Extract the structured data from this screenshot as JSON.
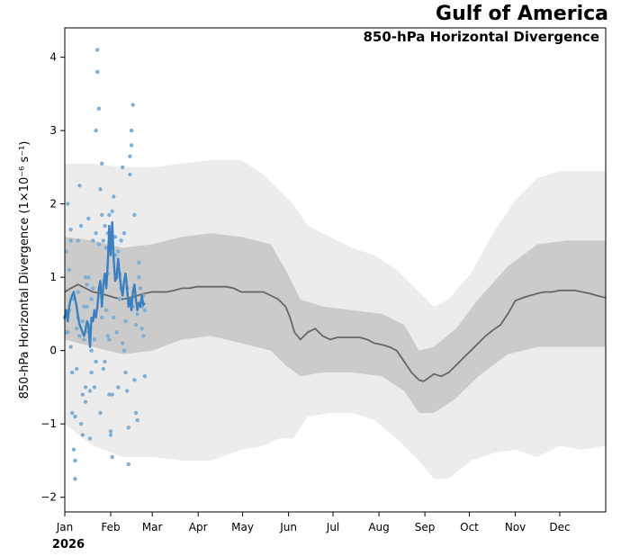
{
  "chart_data": {
    "type": "line",
    "title": "Gulf of America",
    "subtitle": "850-hPa Horizontal Divergence",
    "ylabel": "850-hPa Horizontal Divergence (1×10⁻⁶ s⁻¹)",
    "xlabel": "",
    "year_label": "2026",
    "ylim": [
      -2.2,
      4.4
    ],
    "xlim_day": [
      1,
      366
    ],
    "y_ticks": [
      -2,
      -1,
      0,
      1,
      2,
      3,
      4
    ],
    "y_tick_labels": [
      "−2",
      "−1",
      "0",
      "1",
      "2",
      "3",
      "4"
    ],
    "x_ticks": [
      {
        "label": "Jan",
        "day": 1
      },
      {
        "label": "Feb",
        "day": 32
      },
      {
        "label": "Mar",
        "day": 60
      },
      {
        "label": "Apr",
        "day": 91
      },
      {
        "label": "May",
        "day": 121
      },
      {
        "label": "Jun",
        "day": 152
      },
      {
        "label": "Jul",
        "day": 182
      },
      {
        "label": "Aug",
        "day": 213
      },
      {
        "label": "Sep",
        "day": 244
      },
      {
        "label": "Oct",
        "day": 274
      },
      {
        "label": "Nov",
        "day": 305
      },
      {
        "label": "Dec",
        "day": 335
      }
    ],
    "climatology_median": {
      "day": [
        1,
        5,
        10,
        15,
        20,
        25,
        30,
        35,
        40,
        45,
        50,
        55,
        60,
        65,
        70,
        75,
        80,
        85,
        90,
        95,
        100,
        105,
        110,
        115,
        120,
        125,
        130,
        135,
        140,
        145,
        150,
        153,
        156,
        160,
        165,
        170,
        175,
        180,
        185,
        190,
        195,
        200,
        205,
        210,
        215,
        220,
        225,
        230,
        235,
        240,
        243,
        246,
        250,
        255,
        260,
        265,
        270,
        275,
        280,
        285,
        290,
        295,
        300,
        305,
        310,
        315,
        320,
        325,
        330,
        335,
        340,
        345,
        350,
        355,
        360,
        366
      ],
      "value": [
        0.8,
        0.85,
        0.9,
        0.85,
        0.8,
        0.78,
        0.75,
        0.72,
        0.7,
        0.72,
        0.75,
        0.78,
        0.8,
        0.8,
        0.8,
        0.82,
        0.85,
        0.85,
        0.87,
        0.87,
        0.87,
        0.87,
        0.87,
        0.85,
        0.8,
        0.8,
        0.8,
        0.8,
        0.75,
        0.7,
        0.6,
        0.45,
        0.25,
        0.15,
        0.25,
        0.3,
        0.2,
        0.15,
        0.18,
        0.18,
        0.18,
        0.18,
        0.15,
        0.1,
        0.08,
        0.05,
        0.0,
        -0.15,
        -0.3,
        -0.4,
        -0.42,
        -0.38,
        -0.32,
        -0.35,
        -0.3,
        -0.2,
        -0.1,
        0.0,
        0.1,
        0.2,
        0.28,
        0.35,
        0.5,
        0.68,
        0.72,
        0.75,
        0.78,
        0.8,
        0.8,
        0.82,
        0.82,
        0.82,
        0.8,
        0.78,
        0.75,
        0.72
      ]
    },
    "band_inner": {
      "day": [
        1,
        20,
        40,
        60,
        80,
        100,
        120,
        140,
        150,
        160,
        175,
        195,
        215,
        230,
        240,
        250,
        265,
        280,
        300,
        320,
        340,
        366
      ],
      "low": [
        0.15,
        0.05,
        -0.05,
        0.0,
        0.15,
        0.2,
        0.1,
        0.0,
        -0.2,
        -0.35,
        -0.3,
        -0.3,
        -0.35,
        -0.55,
        -0.85,
        -0.85,
        -0.65,
        -0.35,
        -0.05,
        0.05,
        0.05,
        0.05
      ],
      "high": [
        1.55,
        1.5,
        1.4,
        1.45,
        1.55,
        1.6,
        1.55,
        1.45,
        1.1,
        0.7,
        0.6,
        0.55,
        0.5,
        0.35,
        0.0,
        0.05,
        0.3,
        0.7,
        1.15,
        1.45,
        1.5,
        1.5
      ]
    },
    "band_outer": {
      "day": [
        1,
        20,
        40,
        60,
        80,
        100,
        120,
        135,
        145,
        155,
        165,
        180,
        195,
        210,
        225,
        240,
        250,
        260,
        275,
        290,
        305,
        320,
        335,
        350,
        366
      ],
      "low": [
        -1.0,
        -1.3,
        -1.45,
        -1.45,
        -1.5,
        -1.5,
        -1.35,
        -1.3,
        -1.2,
        -1.2,
        -0.9,
        -0.85,
        -0.85,
        -0.95,
        -1.2,
        -1.5,
        -1.75,
        -1.75,
        -1.5,
        -1.4,
        -1.35,
        -1.45,
        -1.3,
        -1.35,
        -1.3
      ],
      "high": [
        2.55,
        2.55,
        2.5,
        2.5,
        2.55,
        2.6,
        2.6,
        2.4,
        2.2,
        2.0,
        1.7,
        1.55,
        1.4,
        1.3,
        1.1,
        0.8,
        0.6,
        0.7,
        1.05,
        1.6,
        2.05,
        2.35,
        2.45,
        2.45,
        2.45
      ]
    },
    "observed_smooth": {
      "day": [
        1,
        2,
        3,
        4,
        5,
        6,
        7,
        8,
        9,
        10,
        11,
        12,
        13,
        14,
        15,
        16,
        17,
        18,
        19,
        20,
        21,
        22,
        23,
        24,
        25,
        26,
        27,
        28,
        29,
        30,
        31,
        32,
        33,
        34,
        35,
        36,
        37,
        38,
        39,
        40,
        41,
        42,
        43,
        44,
        45,
        46,
        47,
        48,
        49,
        50,
        51,
        52,
        53,
        54,
        55
      ],
      "value": [
        0.45,
        0.55,
        0.4,
        0.6,
        0.7,
        0.75,
        0.8,
        0.7,
        0.6,
        0.45,
        0.35,
        0.3,
        0.25,
        0.2,
        0.28,
        0.4,
        0.35,
        0.05,
        0.45,
        0.4,
        0.55,
        0.45,
        0.6,
        0.85,
        0.95,
        0.6,
        0.9,
        1.05,
        0.85,
        1.2,
        1.7,
        1.3,
        1.75,
        1.25,
        0.95,
        1.0,
        1.25,
        1.05,
        0.85,
        0.75,
        0.95,
        1.05,
        0.85,
        0.6,
        0.7,
        0.55,
        0.8,
        0.9,
        0.7,
        0.55,
        0.65,
        0.6,
        0.75,
        0.62,
        0.65
      ]
    },
    "observed_points": {
      "day": [
        1,
        2,
        2,
        3,
        3,
        4,
        4,
        5,
        5,
        5,
        6,
        6,
        7,
        7,
        8,
        8,
        8,
        9,
        9,
        10,
        10,
        10,
        11,
        11,
        12,
        12,
        13,
        13,
        13,
        14,
        14,
        15,
        15,
        15,
        16,
        16,
        17,
        17,
        17,
        18,
        18,
        19,
        19,
        19,
        20,
        20,
        21,
        21,
        22,
        22,
        22,
        23,
        23,
        24,
        24,
        25,
        25,
        26,
        26,
        26,
        27,
        27,
        28,
        28,
        29,
        29,
        30,
        30,
        30,
        31,
        31,
        31,
        32,
        32,
        33,
        33,
        33,
        34,
        34,
        35,
        35,
        36,
        36,
        37,
        37,
        38,
        38,
        39,
        39,
        40,
        40,
        41,
        41,
        42,
        42,
        43,
        43,
        44,
        44,
        45,
        45,
        46,
        46,
        47,
        47,
        48,
        48,
        49,
        49,
        50,
        50,
        51,
        51,
        52,
        52,
        53,
        53,
        54,
        54,
        55,
        55
      ],
      "value": [
        0.45,
        1.35,
        0.25,
        0.25,
        2.0,
        0.55,
        1.1,
        1.5,
        1.65,
        0.05,
        -0.3,
        -0.85,
        0.7,
        -1.35,
        -1.5,
        -0.9,
        -1.75,
        -0.25,
        0.3,
        0.8,
        0.45,
        1.5,
        2.25,
        0.2,
        1.7,
        -1.0,
        -0.6,
        -1.15,
        0.4,
        0.6,
        0.15,
        -0.7,
        -0.5,
        1.0,
        0.9,
        0.6,
        0.25,
        1.0,
        1.8,
        -1.2,
        -0.55,
        -0.3,
        0.0,
        0.7,
        1.5,
        0.85,
        -0.5,
        0.15,
        -0.15,
        1.6,
        3.0,
        3.8,
        4.1,
        3.3,
        1.45,
        -0.85,
        2.2,
        2.55,
        0.45,
        1.85,
        1.5,
        -0.25,
        -0.15,
        1.7,
        0.55,
        1.4,
        1.05,
        0.2,
        1.6,
        -0.6,
        1.85,
        0.15,
        -1.1,
        -1.15,
        -1.45,
        -0.6,
        1.9,
        0.45,
        2.1,
        1.55,
        1.3,
        0.25,
        1.0,
        1.35,
        -0.5,
        0.7,
        1.05,
        1.5,
        0.85,
        0.1,
        2.5,
        0.0,
        1.6,
        -0.3,
        0.4,
        0.85,
        -0.55,
        -1.05,
        -1.55,
        2.4,
        2.65,
        2.8,
        3.0,
        3.35,
        0.6,
        -0.4,
        1.85,
        -0.85,
        0.35,
        -0.95,
        0.5,
        1.0,
        1.2,
        0.65,
        0.85,
        0.3,
        0.6,
        0.2,
        0.75,
        -0.35,
        0.55
      ],
      "color": "#7eb0d6"
    },
    "colors": {
      "band_outer": "#ececec",
      "band_inner": "#cbcbcb",
      "median": "#666666",
      "observed_line": "#3a7fbf",
      "observed_points": "#7eb0d6"
    }
  }
}
